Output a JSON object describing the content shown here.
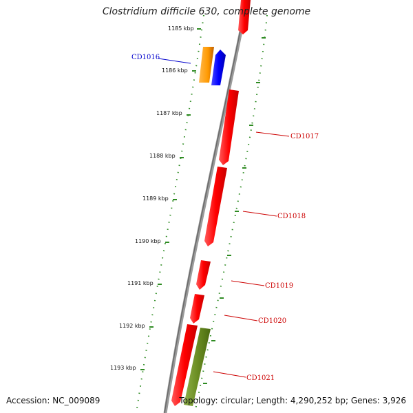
{
  "title": "Clostridium difficile 630, complete genome",
  "footer": {
    "accession": "Accession: NC_009089",
    "topology": "Topology: circular; Length: 4,290,252 bp; Genes: 3,926"
  },
  "colors": {
    "backbone": "#808080",
    "tick": "#2e8b22",
    "gene_red": "#ff0000",
    "gene_blue": "#0000ff",
    "gene_orange": "#ff9900",
    "gene_olive": "#6b8e23",
    "label_red": "#cc0000",
    "label_blue": "#0000cc"
  },
  "ticks": [
    {
      "label": "1185 kbp"
    },
    {
      "label": "1186 kbp"
    },
    {
      "label": "1187 kbp"
    },
    {
      "label": "1188 kbp"
    },
    {
      "label": "1189 kbp"
    },
    {
      "label": "1190 kbp"
    },
    {
      "label": "1191 kbp"
    },
    {
      "label": "1192 kbp"
    },
    {
      "label": "1193 kbp"
    }
  ],
  "gene_labels": [
    {
      "text": "CD1016",
      "color": "blue"
    },
    {
      "text": "CD1017",
      "color": "red"
    },
    {
      "text": "CD1018",
      "color": "red"
    },
    {
      "text": "CD1019",
      "color": "red"
    },
    {
      "text": "CD1020",
      "color": "red"
    },
    {
      "text": "CD1021",
      "color": "red"
    }
  ]
}
